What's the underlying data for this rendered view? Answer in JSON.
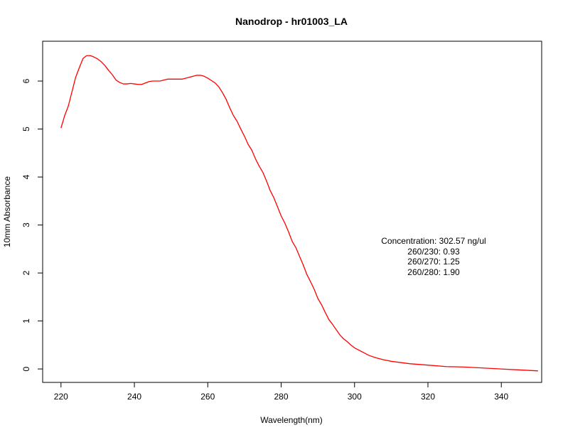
{
  "chart_data": {
    "type": "line",
    "title": "Nanodrop - hr01003_LA",
    "xlabel": "Wavelength(nm)",
    "ylabel": "10mm Absorbance",
    "xlim": [
      215,
      351
    ],
    "ylim": [
      -0.28,
      6.83
    ],
    "xticks": [
      220,
      240,
      260,
      280,
      300,
      320,
      340
    ],
    "yticks": [
      0,
      1,
      2,
      3,
      4,
      5,
      6
    ],
    "grid": false,
    "series": [
      {
        "color": "#ff0000",
        "x": [
          220,
          221,
          222,
          223,
          224,
          225,
          226,
          227,
          228,
          229,
          230,
          231,
          232,
          233,
          234,
          235,
          236,
          237,
          238,
          239,
          240,
          241,
          242,
          243,
          244,
          245,
          246,
          247,
          248,
          249,
          250,
          251,
          252,
          253,
          254,
          255,
          256,
          257,
          258,
          259,
          260,
          261,
          262,
          263,
          264,
          265,
          266,
          267,
          268,
          269,
          270,
          271,
          272,
          273,
          274,
          275,
          276,
          277,
          278,
          279,
          280,
          281,
          282,
          283,
          284,
          285,
          286,
          287,
          288,
          289,
          290,
          291,
          292,
          293,
          294,
          295,
          296,
          297,
          298,
          299,
          300,
          302,
          304,
          306,
          308,
          310,
          315,
          320,
          325,
          330,
          335,
          340,
          345,
          350
        ],
        "y": [
          5.02,
          5.28,
          5.48,
          5.78,
          6.08,
          6.28,
          6.47,
          6.53,
          6.53,
          6.5,
          6.46,
          6.4,
          6.32,
          6.22,
          6.13,
          6.02,
          5.97,
          5.94,
          5.94,
          5.95,
          5.94,
          5.93,
          5.93,
          5.96,
          5.99,
          6.0,
          6.0,
          6.0,
          6.02,
          6.04,
          6.04,
          6.04,
          6.04,
          6.04,
          6.06,
          6.08,
          6.1,
          6.12,
          6.12,
          6.1,
          6.06,
          6.01,
          5.96,
          5.88,
          5.76,
          5.62,
          5.44,
          5.28,
          5.16,
          5.0,
          4.85,
          4.68,
          4.56,
          4.38,
          4.23,
          4.1,
          3.92,
          3.72,
          3.57,
          3.38,
          3.19,
          3.04,
          2.86,
          2.66,
          2.53,
          2.35,
          2.17,
          1.97,
          1.82,
          1.66,
          1.47,
          1.34,
          1.18,
          1.03,
          0.93,
          0.82,
          0.71,
          0.63,
          0.57,
          0.5,
          0.44,
          0.36,
          0.28,
          0.23,
          0.19,
          0.16,
          0.11,
          0.08,
          0.05,
          0.04,
          0.02,
          0.0,
          -0.02,
          -0.04
        ]
      }
    ],
    "annotations": [
      "Concentration: 302.57 ng/ul",
      "260/230: 0.93",
      "260/270: 1.25",
      "260/280: 1.90"
    ]
  }
}
